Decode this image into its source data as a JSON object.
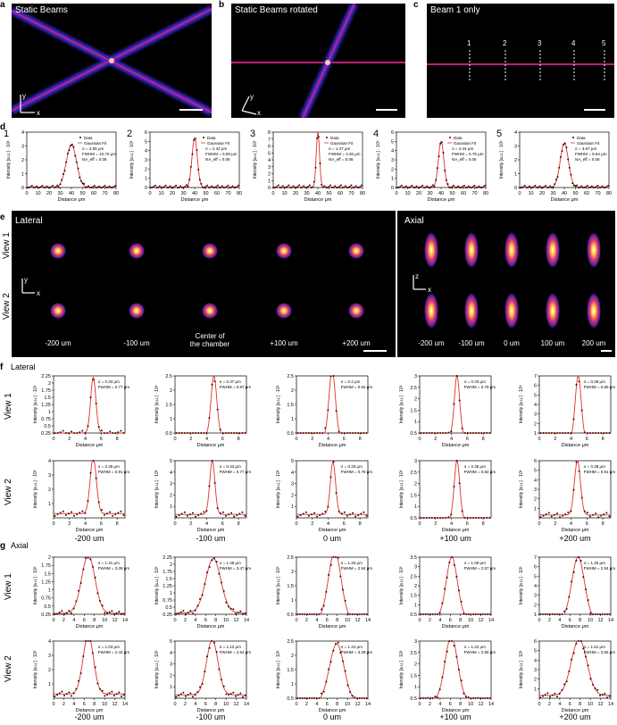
{
  "panels": {
    "a": {
      "label": "a",
      "title": "Static Beams"
    },
    "b": {
      "label": "b",
      "title": "Static Beams rotated"
    },
    "c": {
      "label": "c",
      "title": "Beam 1 only",
      "markers": [
        "1",
        "2",
        "3",
        "4",
        "5"
      ]
    },
    "d": {
      "label": "d",
      "plot_numbers": [
        "1",
        "2",
        "3",
        "4",
        "5"
      ]
    },
    "e": {
      "label": "e",
      "lateral": "Lateral",
      "axial": "Axial",
      "view1": "View 1",
      "view2": "View 2",
      "lateral_positions": [
        "-200 um",
        "-100 um",
        "Center of\nthe chamber",
        "+100 um",
        "+200 um"
      ],
      "axial_positions": [
        "-200 um",
        "-100 um",
        "0 um",
        "100 um",
        "200 um"
      ]
    },
    "f": {
      "label": "f",
      "title": "Lateral",
      "view1": "View 1",
      "view2": "View 2",
      "columns": [
        "-200 um",
        "-100 um",
        "0 um",
        "+100 um",
        "+200 um"
      ]
    },
    "g": {
      "label": "g",
      "title": "Axial",
      "view1": "View 1",
      "view2": "View 2",
      "columns": [
        "-200 um",
        "-100 um",
        "0 um",
        "+100 um",
        "+200 um"
      ]
    }
  },
  "axis_labels": {
    "d_x": "Distance  μm",
    "d_y": "Intensity [a.u.] · 10³",
    "fg_x": "Distance  μm",
    "fg_y": "Intensity [a.u.] · 10³",
    "legend_data": "Data",
    "legend_fit": "Gaussian Fit"
  },
  "colors": {
    "fit": "#e0302a",
    "data": "#3a0a0a",
    "beam": "#c0207a",
    "beam_edge": "#3b2bd6"
  },
  "chart_data": [
    {
      "id": "d",
      "type": "line",
      "x_ticks": [
        0,
        10,
        20,
        30,
        40,
        50,
        60,
        70,
        80
      ],
      "xlim": [
        0,
        80
      ],
      "series": [
        {
          "name": "1",
          "peak": 3.1,
          "center": 40,
          "sigma": 4.55,
          "ylim": [
            0,
            4
          ],
          "y_ticks": [
            0,
            1,
            2,
            3,
            4
          ],
          "stats": [
            "σ = 4.55 μm",
            "FWHM = 10.72 μm",
            "NA_eff = 0.06"
          ]
        },
        {
          "name": "2",
          "peak": 5.4,
          "center": 40,
          "sigma": 2.42,
          "ylim": [
            0,
            6
          ],
          "y_ticks": [
            0,
            1,
            2,
            3,
            4,
            5,
            6
          ],
          "stats": [
            "σ = 2.42 μm",
            "FWHM = 5.69 μm",
            "NA_eff = 0.06"
          ]
        },
        {
          "name": "3",
          "peak": 8.0,
          "center": 40,
          "sigma": 1.47,
          "ylim": [
            0,
            8
          ],
          "y_ticks": [
            0,
            1,
            2,
            3,
            4,
            5,
            6,
            7,
            8
          ],
          "stats": [
            "σ = 1.47 μm",
            "FWHM = 3.46 μm",
            "NA_eff = 0.06"
          ]
        },
        {
          "name": "4",
          "peak": 5.0,
          "center": 40,
          "sigma": 2.44,
          "ylim": [
            0,
            6
          ],
          "y_ticks": [
            0,
            1,
            2,
            3,
            4,
            5,
            6
          ],
          "stats": [
            "σ = 2.44 μm",
            "FWHM = 5.75 μm",
            "NA_eff = 0.06"
          ]
        },
        {
          "name": "5",
          "peak": 3.2,
          "center": 40,
          "sigma": 3.67,
          "ylim": [
            0,
            4
          ],
          "y_ticks": [
            0,
            1,
            2,
            3,
            4
          ],
          "stats": [
            "σ = 3.67 μm",
            "FWHM = 8.64 μm",
            "NA_eff = 0.06"
          ]
        }
      ]
    },
    {
      "id": "f",
      "type": "line",
      "xlim": [
        0,
        9
      ],
      "x_ticks": [
        0,
        2,
        4,
        6,
        8
      ],
      "rows": [
        [
          {
            "peak": 2.2,
            "base": 0.25,
            "center": 5,
            "sigma": 0.33,
            "ylim": [
              0.25,
              2.25
            ],
            "y_ticks": [
              0.25,
              0.5,
              0.75,
              1.0,
              1.25,
              1.5,
              1.75,
              2.0,
              2.25
            ],
            "stats": [
              "σ = 0.33 μm",
              "FWHM = 0.77 μm"
            ]
          },
          {
            "peak": 2.5,
            "base": 0.4,
            "center": 4.9,
            "sigma": 0.37,
            "ylim": [
              0.5,
              2.5
            ],
            "y_ticks": [
              0.5,
              1.0,
              1.5,
              2.0,
              2.5
            ],
            "stats": [
              "σ = 0.37 μm",
              "FWHM = 0.87 μm"
            ]
          },
          {
            "peak": 2.7,
            "base": 0.35,
            "center": 4.5,
            "sigma": 0.4,
            "ylim": [
              0.5,
              2.5
            ],
            "y_ticks": [
              0.5,
              1.0,
              1.5,
              2.0,
              2.5
            ],
            "stats": [
              "σ = 0.4 μm",
              "FWHM = 0.94 μm"
            ]
          },
          {
            "peak": 3.0,
            "base": 0.4,
            "center": 4.7,
            "sigma": 0.33,
            "ylim": [
              0.5,
              3.0
            ],
            "y_ticks": [
              0.5,
              1.0,
              1.5,
              2.0,
              2.5,
              3.0
            ],
            "stats": [
              "σ = 0.33 μm",
              "FWHM = 0.78 μm"
            ]
          },
          {
            "peak": 7,
            "base": 0.3,
            "center": 4.9,
            "sigma": 0.38,
            "ylim": [
              1,
              7
            ],
            "y_ticks": [
              1,
              2,
              3,
              4,
              5,
              6,
              7
            ],
            "stats": [
              "σ = 0.38 μm",
              "FWHM = 0.89 μm"
            ]
          }
        ],
        [
          {
            "peak": 4.2,
            "base": 0.3,
            "center": 5,
            "sigma": 0.39,
            "ylim": [
              0,
              4
            ],
            "y_ticks": [
              1,
              2,
              3,
              4
            ],
            "stats": [
              "σ = 0.39 μm",
              "FWHM = 0.91 μm"
            ]
          },
          {
            "peak": 5.0,
            "base": 0.3,
            "center": 4.7,
            "sigma": 0.33,
            "ylim": [
              0,
              5
            ],
            "y_ticks": [
              1,
              2,
              3,
              4,
              5
            ],
            "stats": [
              "σ = 0.33 μm",
              "FWHM = 0.77 μm"
            ]
          },
          {
            "peak": 4.9,
            "base": 0.3,
            "center": 4.6,
            "sigma": 0.33,
            "ylim": [
              0,
              5
            ],
            "y_ticks": [
              1,
              2,
              3,
              4,
              5
            ],
            "stats": [
              "σ = 0.33 μm",
              "FWHM = 0.78 μm"
            ]
          },
          {
            "peak": 3.0,
            "base": 0.4,
            "center": 4.7,
            "sigma": 0.35,
            "ylim": [
              0.5,
              3.0
            ],
            "y_ticks": [
              0.5,
              1.0,
              1.5,
              2.0,
              2.5,
              3.0
            ],
            "stats": [
              "σ = 0.35 μm",
              "FWHM = 0.82 μm"
            ]
          },
          {
            "peak": 6.0,
            "base": 0.3,
            "center": 4.8,
            "sigma": 0.38,
            "ylim": [
              0,
              6
            ],
            "y_ticks": [
              1,
              2,
              3,
              4,
              5,
              6
            ],
            "stats": [
              "σ = 0.38 μm",
              "FWHM = 0.91 μm"
            ]
          }
        ]
      ]
    },
    {
      "id": "g",
      "type": "line",
      "xlim": [
        0,
        14
      ],
      "x_ticks": [
        0,
        2,
        4,
        6,
        8,
        10,
        12,
        14
      ],
      "rows": [
        [
          {
            "peak": 2.05,
            "base": 0.28,
            "center": 6.8,
            "sigma": 1.31,
            "ylim": [
              0.25,
              2.0
            ],
            "y_ticks": [
              0.25,
              0.5,
              0.75,
              1.0,
              1.25,
              1.5,
              1.75,
              2.0
            ],
            "stats": [
              "σ = 1.31 μm",
              "FWHM = 3.09 μm"
            ]
          },
          {
            "peak": 2.2,
            "base": 0.3,
            "center": 7.5,
            "sigma": 1.48,
            "ylim": [
              0.25,
              2.25
            ],
            "y_ticks": [
              0.25,
              0.5,
              0.75,
              1.0,
              1.25,
              1.5,
              1.75,
              2.0,
              2.25
            ],
            "stats": [
              "σ = 1.48 μm",
              "FWHM = 3.47 μm"
            ]
          },
          {
            "peak": 2.7,
            "base": 0.3,
            "center": 7.5,
            "sigma": 1.25,
            "ylim": [
              0.5,
              2.5
            ],
            "y_ticks": [
              0.5,
              1.0,
              1.5,
              2.0,
              2.5
            ],
            "stats": [
              "σ = 1.25 μm",
              "FWHM = 2.94 μm"
            ]
          },
          {
            "peak": 3.5,
            "base": 0.3,
            "center": 6.3,
            "sigma": 1.09,
            "ylim": [
              0.5,
              3.5
            ],
            "y_ticks": [
              0.5,
              1.0,
              1.5,
              2.0,
              2.5,
              3.0,
              3.5
            ],
            "stats": [
              "σ = 1.09 μm",
              "FWHM = 2.57 μm"
            ]
          },
          {
            "peak": 7,
            "base": 0.4,
            "center": 7.6,
            "sigma": 1.25,
            "ylim": [
              1,
              7
            ],
            "y_ticks": [
              1,
              2,
              3,
              4,
              5,
              6,
              7
            ],
            "stats": [
              "σ = 1.25 μm",
              "FWHM = 2.94 μm"
            ]
          }
        ],
        [
          {
            "peak": 4.4,
            "base": 0.3,
            "center": 6.8,
            "sigma": 1.03,
            "ylim": [
              0,
              4
            ],
            "y_ticks": [
              1,
              2,
              3,
              4
            ],
            "stats": [
              "σ = 1.03 μm",
              "FWHM = 2.42 μm"
            ]
          },
          {
            "peak": 5.1,
            "base": 0.3,
            "center": 7.3,
            "sigma": 1.12,
            "ylim": [
              0,
              5
            ],
            "y_ticks": [
              1,
              2,
              3,
              4,
              5
            ],
            "stats": [
              "σ = 1.12 μm",
              "FWHM = 2.64 μm"
            ]
          },
          {
            "peak": 2.4,
            "base": 0.35,
            "center": 7.9,
            "sigma": 1.44,
            "ylim": [
              0.5,
              2.5
            ],
            "y_ticks": [
              0.5,
              1.0,
              1.5,
              2.0,
              2.5
            ],
            "stats": [
              "σ = 1.44 μm",
              "FWHM = 3.39 μm"
            ]
          },
          {
            "peak": 3.2,
            "base": 0.4,
            "center": 6.2,
            "sigma": 1.22,
            "ylim": [
              0.5,
              3.0
            ],
            "y_ticks": [
              0.5,
              1.0,
              1.5,
              2.0,
              2.5,
              3.0
            ],
            "stats": [
              "σ = 1.22 μm",
              "FWHM = 2.86 μm"
            ]
          },
          {
            "peak": 6.2,
            "base": 0.3,
            "center": 7.8,
            "sigma": 1.51,
            "ylim": [
              0,
              6
            ],
            "y_ticks": [
              1,
              2,
              3,
              4,
              5,
              6
            ],
            "stats": [
              "σ = 1.51 μm",
              "FWHM = 3.55 μm"
            ]
          }
        ]
      ]
    }
  ]
}
